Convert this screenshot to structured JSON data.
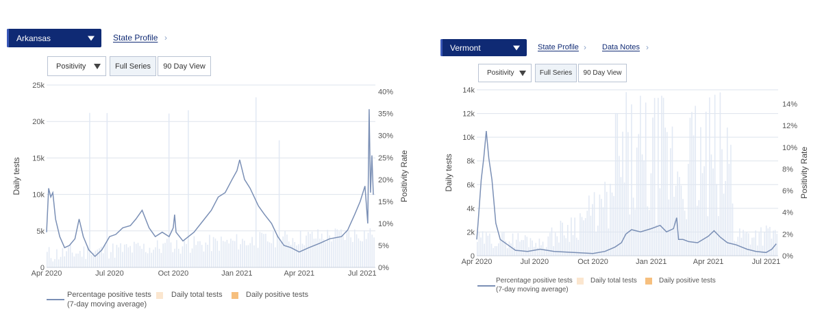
{
  "left": {
    "state_select": {
      "value": "Arkansas",
      "caret_icon": "caret-down-icon"
    },
    "links": [
      {
        "label": "State Profile"
      }
    ],
    "controls": {
      "metric": "Positivity",
      "full_series": "Full Series",
      "ninety_day": "90 Day View"
    },
    "legend": {
      "line_label_1": "Percentage positive tests",
      "line_label_2": "(7-day moving average)",
      "total_label": "Daily total tests",
      "positive_label": "Daily positive tests"
    }
  },
  "right": {
    "state_select": {
      "value": "Vermont",
      "caret_icon": "caret-down-icon"
    },
    "links": [
      {
        "label": "State Profile"
      },
      {
        "label": "Data Notes"
      }
    ],
    "controls": {
      "metric": "Positivity",
      "full_series": "Full Series",
      "ninety_day": "90 Day View"
    },
    "legend": {
      "line_label_1": "Percentage positive tests",
      "line_label_2": "(7-day moving average)",
      "total_label": "Daily total tests",
      "positive_label": "Daily positive tests"
    }
  },
  "colors": {
    "line": "#7a8fb5",
    "bars": "#dfe7f3",
    "total_swatch": "#fbe6cf",
    "positive_swatch": "#f6bf7e",
    "select_bg": "#0f2a74",
    "grid": "#dde3ec"
  },
  "chart_data": [
    {
      "type": "line",
      "state": "Arkansas",
      "x_domain": [
        "2020-04-01",
        "2021-07-20"
      ],
      "x_ticks": [
        {
          "date": "2020-04-01",
          "label": "Apr 2020"
        },
        {
          "date": "2020-07-01",
          "label": "Jul 2020"
        },
        {
          "date": "2020-10-01",
          "label": "Oct 2020"
        },
        {
          "date": "2021-01-01",
          "label": "Jan 2021"
        },
        {
          "date": "2021-04-01",
          "label": "Apr 2021"
        },
        {
          "date": "2021-07-01",
          "label": "Jul 2021"
        }
      ],
      "ylabel": "Daily tests",
      "y_ticks": [
        {
          "v": 0,
          "label": "0"
        },
        {
          "v": 5000,
          "label": "5k"
        },
        {
          "v": 10000,
          "label": "10k"
        },
        {
          "v": 15000,
          "label": "15k"
        },
        {
          "v": 20000,
          "label": "20k"
        },
        {
          "v": 25000,
          "label": "25k"
        }
      ],
      "ylim": [
        0,
        25000
      ],
      "y2label": "Positivity Rate",
      "y2_ticks": [
        {
          "v": 0,
          "label": "0%"
        },
        {
          "v": 5,
          "label": "5%"
        },
        {
          "v": 10,
          "label": "10%"
        },
        {
          "v": 15,
          "label": "15%"
        },
        {
          "v": 20,
          "label": "20%"
        },
        {
          "v": 25,
          "label": "25%"
        },
        {
          "v": 30,
          "label": "30%"
        },
        {
          "v": 35,
          "label": "35%"
        },
        {
          "v": 40,
          "label": "40%"
        }
      ],
      "y2lim": [
        0,
        41.5
      ],
      "grid": true,
      "legend_position": "bottom",
      "positivity_series": [
        [
          "2020-04-01",
          8
        ],
        [
          "2020-04-04",
          18
        ],
        [
          "2020-04-07",
          16
        ],
        [
          "2020-04-10",
          17
        ],
        [
          "2020-04-14",
          11
        ],
        [
          "2020-04-20",
          7
        ],
        [
          "2020-04-27",
          4.5
        ],
        [
          "2020-05-04",
          5
        ],
        [
          "2020-05-12",
          6.5
        ],
        [
          "2020-05-18",
          11
        ],
        [
          "2020-05-24",
          7
        ],
        [
          "2020-06-01",
          4
        ],
        [
          "2020-06-10",
          2.5
        ],
        [
          "2020-06-20",
          4
        ],
        [
          "2020-07-01",
          7
        ],
        [
          "2020-07-10",
          7.5
        ],
        [
          "2020-07-20",
          9
        ],
        [
          "2020-07-31",
          9.5
        ],
        [
          "2020-08-08",
          11
        ],
        [
          "2020-08-17",
          13
        ],
        [
          "2020-08-27",
          9
        ],
        [
          "2020-09-05",
          7
        ],
        [
          "2020-09-15",
          8
        ],
        [
          "2020-09-25",
          7
        ],
        [
          "2020-10-01",
          9
        ],
        [
          "2020-10-03",
          12
        ],
        [
          "2020-10-05",
          8
        ],
        [
          "2020-10-15",
          6
        ],
        [
          "2020-10-31",
          8
        ],
        [
          "2020-11-15",
          11
        ],
        [
          "2020-11-25",
          13
        ],
        [
          "2020-12-05",
          16
        ],
        [
          "2020-12-15",
          17
        ],
        [
          "2020-12-25",
          20
        ],
        [
          "2021-01-01",
          22
        ],
        [
          "2021-01-05",
          24.5
        ],
        [
          "2021-01-12",
          20
        ],
        [
          "2021-01-20",
          18
        ],
        [
          "2021-02-01",
          14
        ],
        [
          "2021-02-10",
          12
        ],
        [
          "2021-02-20",
          10
        ],
        [
          "2021-03-01",
          7
        ],
        [
          "2021-03-10",
          5
        ],
        [
          "2021-03-20",
          4.5
        ],
        [
          "2021-04-01",
          3.5
        ],
        [
          "2021-04-15",
          4.5
        ],
        [
          "2021-05-01",
          5.5
        ],
        [
          "2021-05-15",
          6.5
        ],
        [
          "2021-06-01",
          7
        ],
        [
          "2021-06-10",
          8.5
        ],
        [
          "2021-06-20",
          12
        ],
        [
          "2021-06-28",
          15
        ],
        [
          "2021-07-05",
          18.5
        ],
        [
          "2021-07-09",
          10
        ],
        [
          "2021-07-11",
          36
        ],
        [
          "2021-07-13",
          17
        ],
        [
          "2021-07-15",
          25.5
        ],
        [
          "2021-07-17",
          16.5
        ]
      ],
      "daily_total_tests": "light blue-gray vertical bars, mostly under 5k with spikes up to 25k"
    },
    {
      "type": "line",
      "state": "Vermont",
      "x_domain": [
        "2020-04-01",
        "2021-07-20"
      ],
      "x_ticks": [
        {
          "date": "2020-04-01",
          "label": "Apr 2020"
        },
        {
          "date": "2020-07-01",
          "label": "Jul 2020"
        },
        {
          "date": "2020-10-01",
          "label": "Oct 2020"
        },
        {
          "date": "2021-01-01",
          "label": "Jan 2021"
        },
        {
          "date": "2021-04-01",
          "label": "Apr 2021"
        },
        {
          "date": "2021-07-01",
          "label": "Jul 2021"
        }
      ],
      "ylabel": "Daily tests",
      "y_ticks": [
        {
          "v": 0,
          "label": "0"
        },
        {
          "v": 2000,
          "label": "2k"
        },
        {
          "v": 4000,
          "label": "4k"
        },
        {
          "v": 6000,
          "label": "6k"
        },
        {
          "v": 8000,
          "label": "8k"
        },
        {
          "v": 10000,
          "label": "10k"
        },
        {
          "v": 12000,
          "label": "12k"
        },
        {
          "v": 14000,
          "label": "14k"
        }
      ],
      "ylim": [
        0,
        14000
      ],
      "y2label": "Positivity Rate",
      "y2_ticks": [
        {
          "v": 0,
          "label": "0%"
        },
        {
          "v": 2,
          "label": "2%"
        },
        {
          "v": 4,
          "label": "4%"
        },
        {
          "v": 6,
          "label": "6%"
        },
        {
          "v": 8,
          "label": "8%"
        },
        {
          "v": 10,
          "label": "10%"
        },
        {
          "v": 12,
          "label": "12%"
        },
        {
          "v": 14,
          "label": "14%"
        }
      ],
      "y2lim": [
        0,
        15.3
      ],
      "grid": true,
      "legend_position": "bottom",
      "positivity_series": [
        [
          "2020-04-01",
          1.5
        ],
        [
          "2020-04-03",
          3
        ],
        [
          "2020-04-08",
          7
        ],
        [
          "2020-04-12",
          9
        ],
        [
          "2020-04-16",
          11.5
        ],
        [
          "2020-04-20",
          9
        ],
        [
          "2020-04-25",
          7
        ],
        [
          "2020-05-01",
          3
        ],
        [
          "2020-05-08",
          1.5
        ],
        [
          "2020-05-20",
          1
        ],
        [
          "2020-06-01",
          0.5
        ],
        [
          "2020-06-20",
          0.4
        ],
        [
          "2020-07-10",
          0.6
        ],
        [
          "2020-08-01",
          0.4
        ],
        [
          "2020-09-01",
          0.3
        ],
        [
          "2020-10-01",
          0.2
        ],
        [
          "2020-10-20",
          0.4
        ],
        [
          "2020-11-05",
          0.8
        ],
        [
          "2020-11-15",
          1.2
        ],
        [
          "2020-11-22",
          2
        ],
        [
          "2020-12-01",
          2.4
        ],
        [
          "2020-12-15",
          2.2
        ],
        [
          "2021-01-01",
          2.5
        ],
        [
          "2021-01-15",
          2.8
        ],
        [
          "2021-01-25",
          2.2
        ],
        [
          "2021-02-05",
          2.5
        ],
        [
          "2021-02-10",
          3.5
        ],
        [
          "2021-02-13",
          1.5
        ],
        [
          "2021-02-20",
          1.5
        ],
        [
          "2021-03-01",
          1.3
        ],
        [
          "2021-03-15",
          1.2
        ],
        [
          "2021-04-01",
          1.8
        ],
        [
          "2021-04-10",
          2.3
        ],
        [
          "2021-04-20",
          1.7
        ],
        [
          "2021-05-01",
          1.2
        ],
        [
          "2021-05-15",
          1
        ],
        [
          "2021-06-01",
          0.6
        ],
        [
          "2021-06-15",
          0.4
        ],
        [
          "2021-07-01",
          0.3
        ],
        [
          "2021-07-10",
          0.6
        ],
        [
          "2021-07-17",
          1.1
        ]
      ],
      "daily_total_tests": "light blue-gray vertical bars, rising from ~1k to 14k in early 2021"
    }
  ]
}
